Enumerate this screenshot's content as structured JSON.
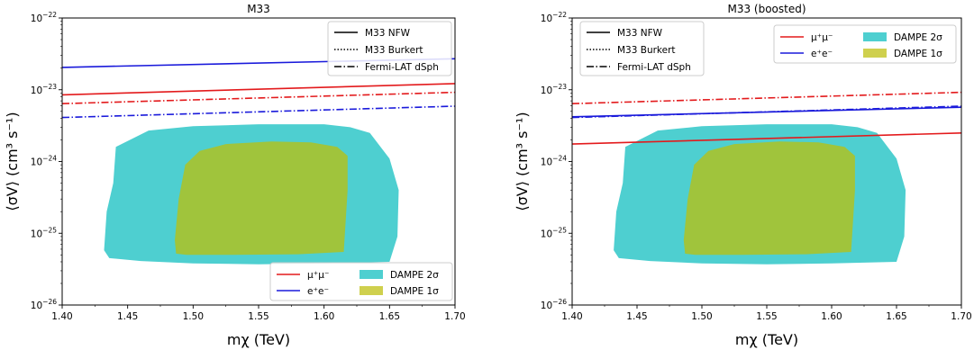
{
  "colors": {
    "mumu": "#e31a1c",
    "ee": "#1a1adb",
    "dampe2": "#4ecfd0",
    "dampe1": "#a0c43c",
    "dampe1_legend": "#cfd04e"
  },
  "legend_labels": {
    "nfw": "M33 NFW",
    "burkert": "M33 Burkert",
    "fermi": "Fermi-LAT dSph",
    "mumu": "μ⁺μ⁻",
    "ee": "e⁺e⁻",
    "dampe2": "DAMPE 2σ",
    "dampe1": "DAMPE 1σ"
  },
  "chart_data": [
    {
      "type": "line",
      "title": "M33",
      "xlabel": "mχ (TeV)",
      "ylabel": "⟨σV⟩ (cm³ s⁻¹)",
      "xlim": [
        1.4,
        1.7
      ],
      "ylim": [
        1e-26,
        1e-22
      ],
      "yscale": "log",
      "x_ticks": [
        "1.40",
        "1.45",
        "1.50",
        "1.55",
        "1.60",
        "1.65",
        "1.70"
      ],
      "y_ticks": [
        {
          "base": "10",
          "exp": "−26",
          "value": 1e-26
        },
        {
          "base": "10",
          "exp": "−25",
          "value": 1e-25
        },
        {
          "base": "10",
          "exp": "−24",
          "value": 1e-24
        },
        {
          "base": "10",
          "exp": "−23",
          "value": 1e-23
        },
        {
          "base": "10",
          "exp": "−22",
          "value": 1e-22
        }
      ],
      "grid": false,
      "series": [
        {
          "name": "μ⁺μ⁻",
          "profile": "M33 NFW",
          "style": "solid",
          "color": "mumu",
          "x": [
            1.4,
            1.7
          ],
          "y": [
            8.5e-24,
            1.22e-23
          ]
        },
        {
          "name": "e⁺e⁻",
          "profile": "M33 NFW",
          "style": "solid",
          "color": "ee",
          "x": [
            1.4,
            1.7
          ],
          "y": [
            2.05e-23,
            2.7e-23
          ]
        },
        {
          "name": "μ⁺μ⁻",
          "profile": "Fermi-LAT dSph",
          "style": "dashdot",
          "color": "mumu",
          "x": [
            1.4,
            1.7
          ],
          "y": [
            6.4e-24,
            9.2e-24
          ]
        },
        {
          "name": "e⁺e⁻",
          "profile": "Fermi-LAT dSph",
          "style": "dashdot",
          "color": "ee",
          "x": [
            1.4,
            1.7
          ],
          "y": [
            4.1e-24,
            5.9e-24
          ]
        }
      ],
      "regions": [
        {
          "name": "DAMPE 2σ",
          "color": "dampe2",
          "points": [
            [
              1.436,
              4.5e-26
            ],
            [
              1.432,
              5.8e-26
            ],
            [
              1.434,
              2e-25
            ],
            [
              1.439,
              5e-25
            ],
            [
              1.441,
              1.6e-24
            ],
            [
              1.466,
              2.7e-24
            ],
            [
              1.5,
              3.1e-24
            ],
            [
              1.55,
              3.3e-24
            ],
            [
              1.6,
              3.3e-24
            ],
            [
              1.62,
              3e-24
            ],
            [
              1.635,
              2.5e-24
            ],
            [
              1.65,
              1.1e-24
            ],
            [
              1.657,
              4e-25
            ],
            [
              1.656,
              9e-26
            ],
            [
              1.65,
              4e-26
            ],
            [
              1.6,
              3.8e-26
            ],
            [
              1.55,
              3.7e-26
            ],
            [
              1.5,
              3.8e-26
            ],
            [
              1.46,
              4.1e-26
            ]
          ]
        },
        {
          "name": "DAMPE 1σ",
          "color": "dampe1",
          "points": [
            [
              1.487,
              5.2e-26
            ],
            [
              1.486,
              8e-26
            ],
            [
              1.489,
              3e-25
            ],
            [
              1.494,
              9e-25
            ],
            [
              1.505,
              1.4e-24
            ],
            [
              1.525,
              1.75e-24
            ],
            [
              1.56,
              1.9e-24
            ],
            [
              1.59,
              1.85e-24
            ],
            [
              1.61,
              1.6e-24
            ],
            [
              1.618,
              1.2e-24
            ],
            [
              1.618,
              4e-25
            ],
            [
              1.615,
              5.5e-26
            ],
            [
              1.58,
              5.1e-26
            ],
            [
              1.53,
              5e-26
            ],
            [
              1.495,
              5e-26
            ]
          ]
        }
      ]
    },
    {
      "type": "line",
      "title": "M33 (boosted)",
      "xlabel": "mχ (TeV)",
      "ylabel": "⟨σV⟩ (cm³ s⁻¹)",
      "xlim": [
        1.4,
        1.7
      ],
      "ylim": [
        1e-26,
        1e-22
      ],
      "yscale": "log",
      "x_ticks": [
        "1.40",
        "1.45",
        "1.50",
        "1.55",
        "1.60",
        "1.65",
        "1.70"
      ],
      "y_ticks": [
        {
          "base": "10",
          "exp": "−26",
          "value": 1e-26
        },
        {
          "base": "10",
          "exp": "−25",
          "value": 1e-25
        },
        {
          "base": "10",
          "exp": "−24",
          "value": 1e-24
        },
        {
          "base": "10",
          "exp": "−23",
          "value": 1e-23
        },
        {
          "base": "10",
          "exp": "−22",
          "value": 1e-22
        }
      ],
      "grid": false,
      "series": [
        {
          "name": "μ⁺μ⁻",
          "profile": "M33 NFW",
          "style": "solid",
          "color": "mumu",
          "x": [
            1.4,
            1.7
          ],
          "y": [
            1.75e-24,
            2.5e-24
          ]
        },
        {
          "name": "e⁺e⁻",
          "profile": "M33 NFW",
          "style": "solid",
          "color": "ee",
          "x": [
            1.4,
            1.7
          ],
          "y": [
            4.2e-24,
            5.7e-24
          ]
        },
        {
          "name": "μ⁺μ⁻",
          "profile": "Fermi-LAT dSph",
          "style": "dashdot",
          "color": "mumu",
          "x": [
            1.4,
            1.7
          ],
          "y": [
            6.4e-24,
            9.2e-24
          ]
        },
        {
          "name": "e⁺e⁻",
          "profile": "Fermi-LAT dSph",
          "style": "dashdot",
          "color": "ee",
          "x": [
            1.4,
            1.7
          ],
          "y": [
            4.1e-24,
            5.9e-24
          ]
        }
      ],
      "regions": [
        {
          "name": "DAMPE 2σ",
          "color": "dampe2",
          "points": [
            [
              1.436,
              4.5e-26
            ],
            [
              1.432,
              5.8e-26
            ],
            [
              1.434,
              2e-25
            ],
            [
              1.439,
              5e-25
            ],
            [
              1.441,
              1.6e-24
            ],
            [
              1.466,
              2.7e-24
            ],
            [
              1.5,
              3.1e-24
            ],
            [
              1.55,
              3.3e-24
            ],
            [
              1.6,
              3.3e-24
            ],
            [
              1.62,
              3e-24
            ],
            [
              1.635,
              2.5e-24
            ],
            [
              1.65,
              1.1e-24
            ],
            [
              1.657,
              4e-25
            ],
            [
              1.656,
              9e-26
            ],
            [
              1.65,
              4e-26
            ],
            [
              1.6,
              3.8e-26
            ],
            [
              1.55,
              3.7e-26
            ],
            [
              1.5,
              3.8e-26
            ],
            [
              1.46,
              4.1e-26
            ]
          ]
        },
        {
          "name": "DAMPE 1σ",
          "color": "dampe1",
          "points": [
            [
              1.487,
              5.2e-26
            ],
            [
              1.486,
              8e-26
            ],
            [
              1.489,
              3e-25
            ],
            [
              1.494,
              9e-25
            ],
            [
              1.505,
              1.4e-24
            ],
            [
              1.525,
              1.75e-24
            ],
            [
              1.56,
              1.9e-24
            ],
            [
              1.59,
              1.85e-24
            ],
            [
              1.61,
              1.6e-24
            ],
            [
              1.618,
              1.2e-24
            ],
            [
              1.618,
              4e-25
            ],
            [
              1.615,
              5.5e-26
            ],
            [
              1.58,
              5.1e-26
            ],
            [
              1.53,
              5e-26
            ],
            [
              1.495,
              5e-26
            ]
          ]
        }
      ]
    }
  ]
}
